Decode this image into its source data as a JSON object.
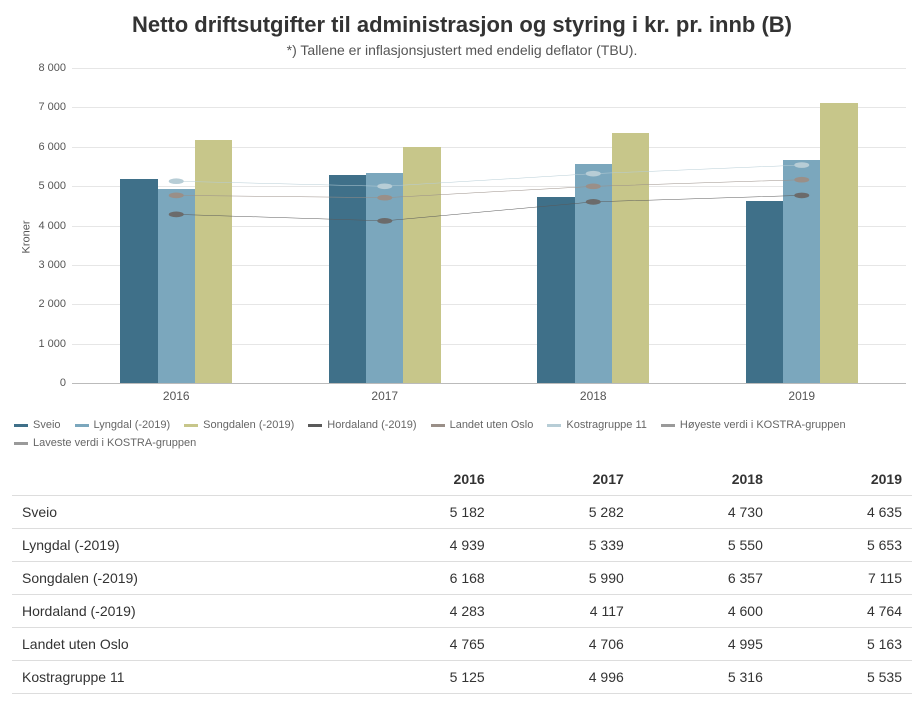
{
  "title": "Netto driftsutgifter til administrasjon og styring i kr. pr. innb (B)",
  "subtitle": "*) Tallene er inflasjonsjustert med endelig deflator (TBU).",
  "ylabel": "Kroner",
  "chart": {
    "type": "bar+line",
    "categories": [
      "2016",
      "2017",
      "2018",
      "2019"
    ],
    "ylim": [
      0,
      8000
    ],
    "ytick_step": 1000,
    "background": "#ffffff",
    "grid_color": "#e6e6e6",
    "bar_series": [
      {
        "name": "Sveio",
        "color": "#3f7089",
        "values": [
          5182,
          5282,
          4730,
          4635
        ]
      },
      {
        "name": "Lyngdal (-2019)",
        "color": "#7ba7bd",
        "values": [
          4939,
          5339,
          5550,
          5653
        ]
      },
      {
        "name": "Songdalen (-2019)",
        "color": "#c7c68a",
        "values": [
          6168,
          5990,
          6357,
          7115
        ]
      }
    ],
    "line_series": [
      {
        "name": "Hordaland (-2019)",
        "color": "#5a5a5a",
        "marker": "#6b6b6b",
        "values": [
          4283,
          4117,
          4600,
          4764
        ]
      },
      {
        "name": "Landet uten Oslo",
        "color": "#9a8f88",
        "marker": "#9a8f88",
        "values": [
          4765,
          4706,
          4995,
          5163
        ]
      },
      {
        "name": "Kostragruppe 11",
        "color": "#b7cdd6",
        "marker": "#b7cdd6",
        "values": [
          5125,
          4996,
          5316,
          5535
        ]
      }
    ],
    "legend_extra": [
      {
        "name": "Høyeste verdi i KOSTRA-gruppen",
        "color": "#9a9a9a"
      },
      {
        "name": "Laveste verdi i KOSTRA-gruppen",
        "color": "#9a9a9a"
      }
    ],
    "bar_group_width_pct": 14,
    "bar_width_within_group_pct": 32
  },
  "table": {
    "columns": [
      "",
      "2016",
      "2017",
      "2018",
      "2019"
    ],
    "rows": [
      [
        "Sveio",
        "5 182",
        "5 282",
        "4 730",
        "4 635"
      ],
      [
        "Lyngdal (-2019)",
        "4 939",
        "5 339",
        "5 550",
        "5 653"
      ],
      [
        "Songdalen (-2019)",
        "6 168",
        "5 990",
        "6 357",
        "7 115"
      ],
      [
        "Hordaland (-2019)",
        "4 283",
        "4 117",
        "4 600",
        "4 764"
      ],
      [
        "Landet uten Oslo",
        "4 765",
        "4 706",
        "4 995",
        "5 163"
      ],
      [
        "Kostragruppe 11",
        "5 125",
        "4 996",
        "5 316",
        "5 535"
      ]
    ]
  }
}
